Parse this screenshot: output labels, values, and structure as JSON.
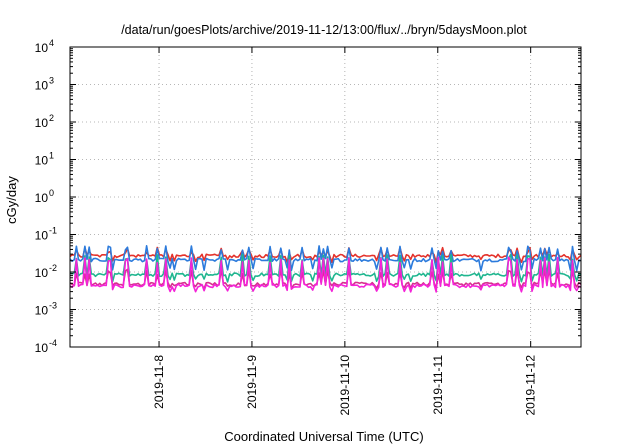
{
  "chart_data": {
    "type": "line",
    "title": "/data/run/goesPlots/archive/2019-11-12/13:00/flux/../bryn/5daysMoon.plot",
    "xlabel": "Coordinated Universal Time (UTC)",
    "ylabel": "cGy/day",
    "yscale": "log",
    "ylim": [
      0.0001,
      10000
    ],
    "xlim": [
      "2019-11-07T01:00",
      "2019-11-12T13:00"
    ],
    "grid": true,
    "y_ticks": [
      {
        "value": 0.0001,
        "base": "10",
        "exp": "-4"
      },
      {
        "value": 0.001,
        "base": "10",
        "exp": "-3"
      },
      {
        "value": 0.01,
        "base": "10",
        "exp": "-2"
      },
      {
        "value": 0.1,
        "base": "10",
        "exp": "-1"
      },
      {
        "value": 1,
        "base": "10",
        "exp": "0"
      },
      {
        "value": 10,
        "base": "10",
        "exp": "1"
      },
      {
        "value": 100,
        "base": "10",
        "exp": "2"
      },
      {
        "value": 1000,
        "base": "10",
        "exp": "3"
      },
      {
        "value": 10000,
        "base": "10",
        "exp": "4"
      }
    ],
    "x_ticks": [
      {
        "value": "2019-11-08T00:00",
        "label": "2019-11-8"
      },
      {
        "value": "2019-11-09T00:00",
        "label": "2019-11-9"
      },
      {
        "value": "2019-11-10T00:00",
        "label": "2019-11-10"
      },
      {
        "value": "2019-11-11T00:00",
        "label": "2019-11-11"
      },
      {
        "value": "2019-11-12T00:00",
        "label": "2019-11-12"
      }
    ],
    "series": [
      {
        "color": "#e4322b",
        "baseline": 0.027,
        "spike": 0.045,
        "dip": 0.02
      },
      {
        "color": "#2c7bdc",
        "baseline": 0.021,
        "spike": 0.05,
        "dip": 0.012
      },
      {
        "color": "#1fb68f",
        "baseline": 0.0085,
        "spike": 0.03,
        "dip": 0.006
      },
      {
        "color": "#d6308e",
        "baseline": 0.0048,
        "spike": 0.012,
        "dip": 0.004
      },
      {
        "color": "#f423d8",
        "baseline": 0.0043,
        "spike": 0.025,
        "dip": 0.0032
      }
    ]
  }
}
